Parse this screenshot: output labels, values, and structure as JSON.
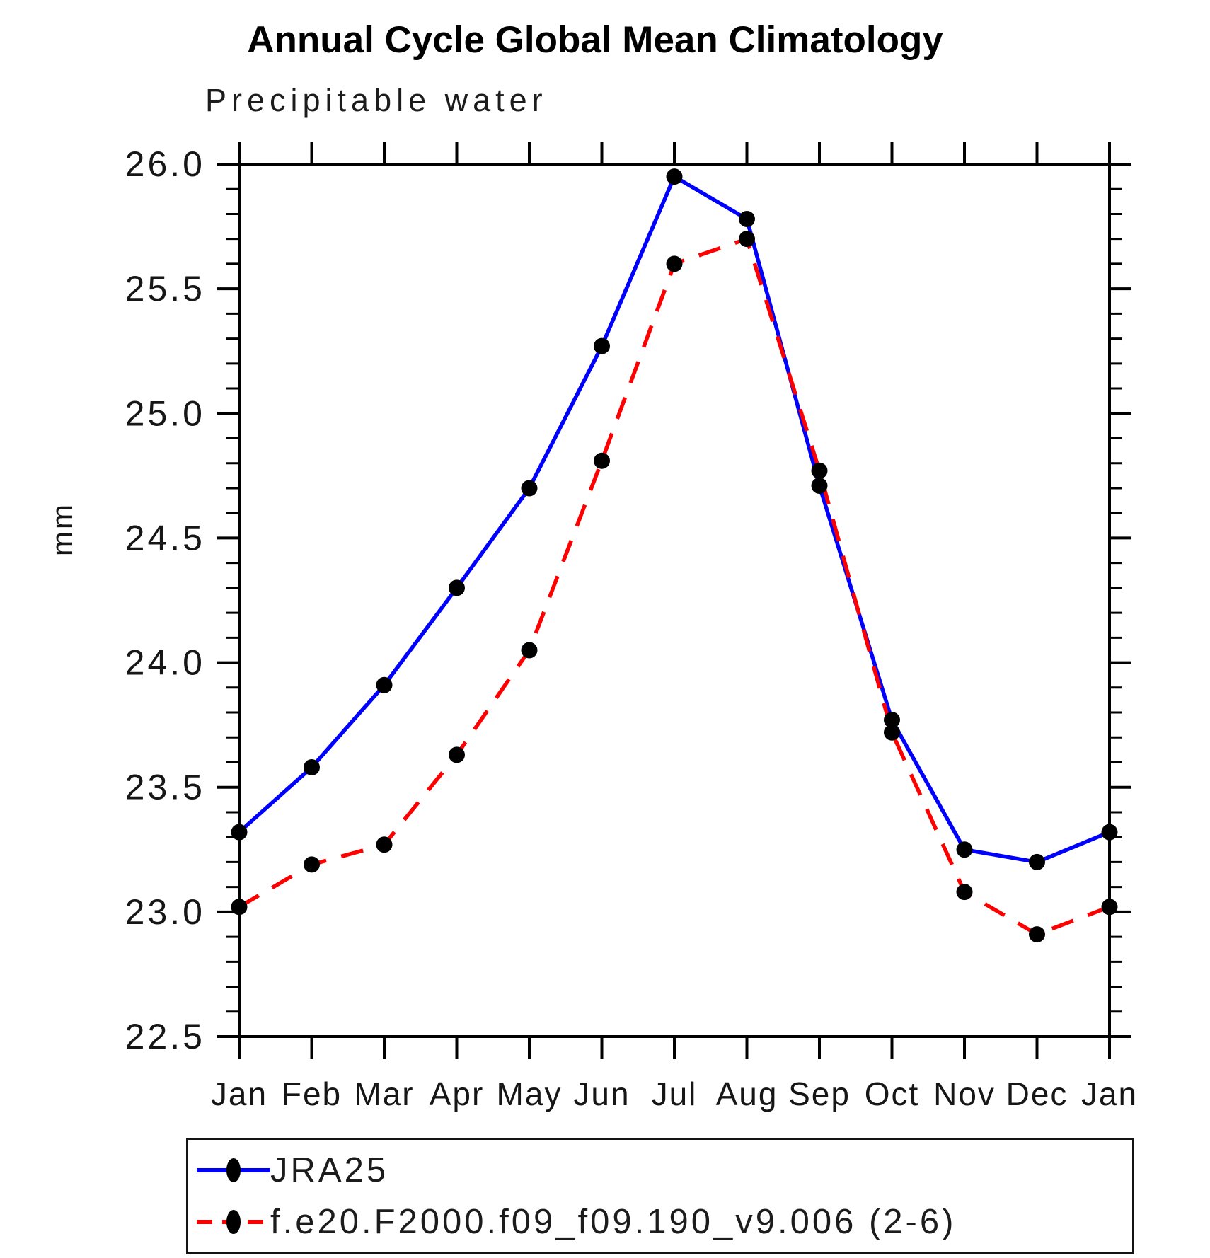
{
  "page": {
    "title": "Annual Cycle Global Mean Climatology",
    "subtitle": "Precipitable water"
  },
  "chart_data": {
    "type": "line",
    "title": "Annual Cycle Global Mean Climatology",
    "subtitle": "Precipitable water",
    "xlabel": "",
    "ylabel": "mm",
    "x_tick_labels": [
      "Jan",
      "Feb",
      "Mar",
      "Apr",
      "May",
      "Jun",
      "Jul",
      "Aug",
      "Sep",
      "Oct",
      "Nov",
      "Dec",
      "Jan"
    ],
    "y_ticks": [
      22.5,
      23.0,
      23.5,
      24.0,
      24.5,
      25.0,
      25.5,
      26.0
    ],
    "y_tick_labels": [
      "22.5",
      "23.0",
      "23.5",
      "24.0",
      "24.5",
      "25.0",
      "25.5",
      "26.0"
    ],
    "ylim": [
      22.5,
      26.0
    ],
    "y_minor_step": 0.1,
    "grid": false,
    "legend_position": "bottom",
    "frame_color": "#000000",
    "marker_color": "#000000",
    "series": [
      {
        "name": "JRA25",
        "color": "#0000ff",
        "style": "solid",
        "marker": "circle",
        "values": [
          23.32,
          23.58,
          23.91,
          24.3,
          24.7,
          25.27,
          25.95,
          25.78,
          24.71,
          23.77,
          23.25,
          23.2,
          23.32
        ]
      },
      {
        "name": "f.e20.F2000.f09_f09.190_v9.006 (2-6)",
        "color": "#ff0000",
        "style": "dashed",
        "marker": "circle",
        "values": [
          23.02,
          23.19,
          23.27,
          23.63,
          24.05,
          24.81,
          25.6,
          25.7,
          24.77,
          23.72,
          23.08,
          22.91,
          23.02
        ]
      }
    ]
  }
}
